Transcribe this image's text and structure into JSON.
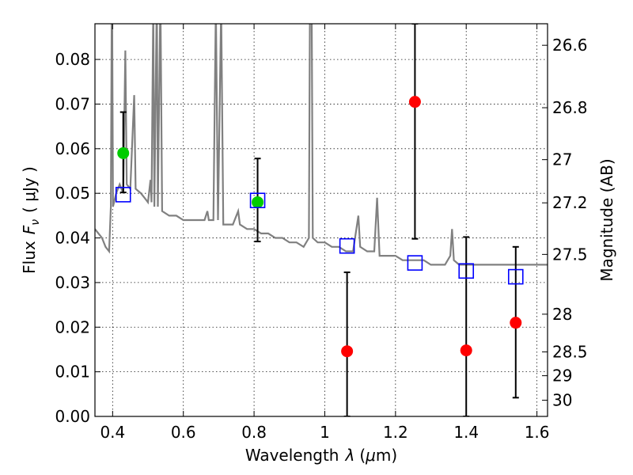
{
  "chart_data": {
    "type": "scatter",
    "xlabel_text": "Wavelength",
    "xlabel_symbol": "λ",
    "xlabel_unit_open": "(",
    "xlabel_unit_mu": "μ",
    "xlabel_unit_rest": "m)",
    "ylabel_text": "Flux",
    "ylabel_symbol": "F",
    "ylabel_sub": "ν",
    "ylabel_unit": "( μJy )",
    "y2label": "Magnitude (AB)",
    "xlim": [
      0.35,
      1.63
    ],
    "ylim": [
      0.0,
      0.088
    ],
    "grid": true,
    "x_ticks": [
      {
        "value": 0.4,
        "label": "0.4"
      },
      {
        "value": 0.6,
        "label": "0.6"
      },
      {
        "value": 0.8,
        "label": "0.8"
      },
      {
        "value": 1.0,
        "label": "1"
      },
      {
        "value": 1.2,
        "label": "1.2"
      },
      {
        "value": 1.4,
        "label": "1.4"
      },
      {
        "value": 1.6,
        "label": "1.6"
      }
    ],
    "y_ticks": [
      {
        "value": 0.0,
        "label": "0.00"
      },
      {
        "value": 0.01,
        "label": "0.01"
      },
      {
        "value": 0.02,
        "label": "0.02"
      },
      {
        "value": 0.03,
        "label": "0.03"
      },
      {
        "value": 0.04,
        "label": "0.04"
      },
      {
        "value": 0.05,
        "label": "0.05"
      },
      {
        "value": 0.06,
        "label": "0.06"
      },
      {
        "value": 0.07,
        "label": "0.07"
      },
      {
        "value": 0.08,
        "label": "0.08"
      }
    ],
    "y2_ticks": [
      {
        "mag": 26.6,
        "label": "26.6"
      },
      {
        "mag": 26.8,
        "label": "26.8"
      },
      {
        "mag": 27.0,
        "label": "27"
      },
      {
        "mag": 27.2,
        "label": "27.2"
      },
      {
        "mag": 27.5,
        "label": "27.5"
      },
      {
        "mag": 28.0,
        "label": "28"
      },
      {
        "mag": 28.5,
        "label": "28.5"
      },
      {
        "mag": 29.0,
        "label": "29"
      },
      {
        "mag": 30.0,
        "label": "30"
      }
    ],
    "model_spectrum": {
      "color": "#808080",
      "points": [
        [
          0.35,
          0.042
        ],
        [
          0.37,
          0.04
        ],
        [
          0.38,
          0.038
        ],
        [
          0.39,
          0.037
        ],
        [
          0.395,
          0.047
        ],
        [
          0.398,
          0.102
        ],
        [
          0.401,
          0.047
        ],
        [
          0.41,
          0.05
        ],
        [
          0.42,
          0.052
        ],
        [
          0.43,
          0.05
        ],
        [
          0.436,
          0.082
        ],
        [
          0.44,
          0.052
        ],
        [
          0.45,
          0.051
        ],
        [
          0.461,
          0.072
        ],
        [
          0.465,
          0.051
        ],
        [
          0.48,
          0.05
        ],
        [
          0.49,
          0.049
        ],
        [
          0.5,
          0.048
        ],
        [
          0.507,
          0.053
        ],
        [
          0.51,
          0.048
        ],
        [
          0.515,
          0.092
        ],
        [
          0.518,
          0.047
        ],
        [
          0.525,
          0.095
        ],
        [
          0.528,
          0.047
        ],
        [
          0.535,
          0.095
        ],
        [
          0.54,
          0.046
        ],
        [
          0.56,
          0.045
        ],
        [
          0.58,
          0.045
        ],
        [
          0.6,
          0.044
        ],
        [
          0.62,
          0.044
        ],
        [
          0.64,
          0.044
        ],
        [
          0.66,
          0.044
        ],
        [
          0.668,
          0.046
        ],
        [
          0.672,
          0.044
        ],
        [
          0.685,
          0.044
        ],
        [
          0.692,
          0.092
        ],
        [
          0.698,
          0.044
        ],
        [
          0.707,
          0.092
        ],
        [
          0.713,
          0.043
        ],
        [
          0.74,
          0.043
        ],
        [
          0.755,
          0.046
        ],
        [
          0.76,
          0.043
        ],
        [
          0.78,
          0.042
        ],
        [
          0.8,
          0.042
        ],
        [
          0.82,
          0.041
        ],
        [
          0.84,
          0.041
        ],
        [
          0.86,
          0.04
        ],
        [
          0.88,
          0.04
        ],
        [
          0.9,
          0.039
        ],
        [
          0.92,
          0.039
        ],
        [
          0.94,
          0.038
        ],
        [
          0.955,
          0.04
        ],
        [
          0.958,
          0.092
        ],
        [
          0.963,
          0.092
        ],
        [
          0.966,
          0.04
        ],
        [
          0.98,
          0.039
        ],
        [
          1.0,
          0.039
        ],
        [
          1.02,
          0.038
        ],
        [
          1.04,
          0.038
        ],
        [
          1.06,
          0.037
        ],
        [
          1.08,
          0.037
        ],
        [
          1.095,
          0.045
        ],
        [
          1.1,
          0.038
        ],
        [
          1.12,
          0.037
        ],
        [
          1.14,
          0.037
        ],
        [
          1.148,
          0.049
        ],
        [
          1.155,
          0.036
        ],
        [
          1.18,
          0.036
        ],
        [
          1.2,
          0.036
        ],
        [
          1.22,
          0.035
        ],
        [
          1.24,
          0.035
        ],
        [
          1.26,
          0.035
        ],
        [
          1.28,
          0.035
        ],
        [
          1.3,
          0.034
        ],
        [
          1.32,
          0.034
        ],
        [
          1.34,
          0.034
        ],
        [
          1.355,
          0.036
        ],
        [
          1.36,
          0.042
        ],
        [
          1.365,
          0.035
        ],
        [
          1.38,
          0.034
        ],
        [
          1.4,
          0.034
        ],
        [
          1.42,
          0.034
        ],
        [
          1.44,
          0.034
        ],
        [
          1.46,
          0.034
        ],
        [
          1.48,
          0.034
        ],
        [
          1.5,
          0.034
        ],
        [
          1.52,
          0.034
        ],
        [
          1.54,
          0.034
        ],
        [
          1.56,
          0.034
        ],
        [
          1.58,
          0.034
        ],
        [
          1.6,
          0.034
        ],
        [
          1.63,
          0.034
        ]
      ]
    },
    "series": [
      {
        "marker": "circle",
        "color": "#00cc00",
        "points": [
          {
            "x": 0.43,
            "y": 0.059,
            "yerr_low": 0.0502,
            "yerr_high": 0.0682
          },
          {
            "x": 0.81,
            "y": 0.048,
            "yerr_low": 0.0392,
            "yerr_high": 0.0578
          }
        ]
      },
      {
        "marker": "circle",
        "color": "#ff0000",
        "points": [
          {
            "x": 1.063,
            "y": 0.0146,
            "yerr_low": 0.0,
            "yerr_high": 0.0323
          },
          {
            "x": 1.255,
            "y": 0.0705,
            "yerr_low": 0.0398,
            "yerr_high": 0.088
          },
          {
            "x": 1.4,
            "y": 0.0148,
            "yerr_low": 0.0,
            "yerr_high": 0.0402
          },
          {
            "x": 1.54,
            "y": 0.021,
            "yerr_low": 0.0042,
            "yerr_high": 0.038
          }
        ]
      },
      {
        "marker": "square-open",
        "color": "#0000ff",
        "points": [
          {
            "x": 0.43,
            "y": 0.0497
          },
          {
            "x": 0.81,
            "y": 0.0484
          },
          {
            "x": 1.063,
            "y": 0.0382
          },
          {
            "x": 1.255,
            "y": 0.0344
          },
          {
            "x": 1.4,
            "y": 0.0326
          },
          {
            "x": 1.54,
            "y": 0.0313
          }
        ]
      }
    ]
  }
}
